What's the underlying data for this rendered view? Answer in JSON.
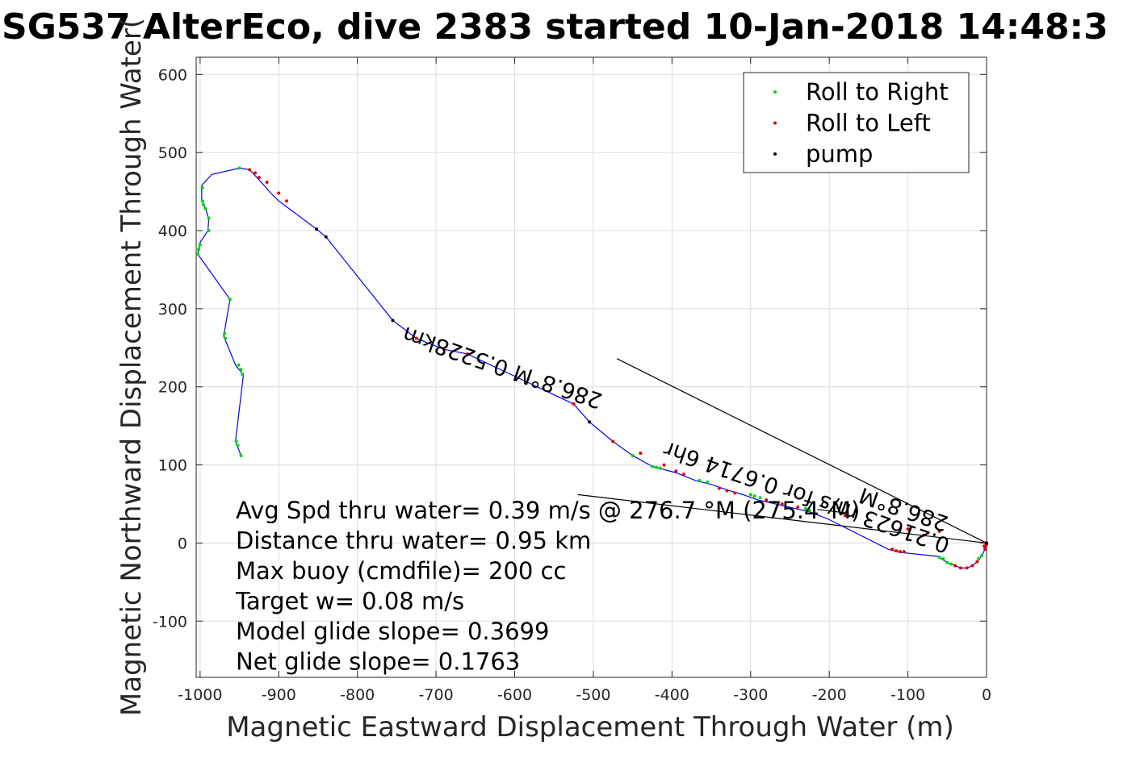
{
  "chart_data": {
    "type": "line",
    "title": "SG537 AlterEco, dive 2383 started 10-Jan-2018 14:48:3",
    "xlabel": "Magnetic Eastward Displacement Through Water (m)",
    "ylabel": "Magnetic Northward Displacement Through Water(",
    "xlim": [
      -1005,
      0
    ],
    "ylim": [
      -172,
      622
    ],
    "xticks": [
      -1000,
      -900,
      -800,
      -700,
      -600,
      -500,
      -400,
      -300,
      -200,
      -100,
      0
    ],
    "yticks": [
      -100,
      0,
      100,
      200,
      300,
      400,
      500,
      600
    ],
    "grid": true,
    "legend": {
      "placement": "top-right",
      "entries": [
        {
          "label": "Roll to Right",
          "color": "#00d800"
        },
        {
          "label": "Roll to Left",
          "color": "#e00000"
        },
        {
          "label": "pump",
          "color": "#000000"
        }
      ]
    },
    "track_color": "#0000ff",
    "track": [
      [
        0,
        0
      ],
      [
        -2,
        -8
      ],
      [
        -6,
        -16
      ],
      [
        -12,
        -24
      ],
      [
        -18,
        -29
      ],
      [
        -25,
        -32
      ],
      [
        -33,
        -32
      ],
      [
        -40,
        -29
      ],
      [
        -50,
        -25
      ],
      [
        -58,
        -20
      ],
      [
        -63,
        -17
      ],
      [
        -110,
        -12
      ],
      [
        -125,
        -8
      ],
      [
        -200,
        30
      ],
      [
        -225,
        40
      ],
      [
        -260,
        48
      ],
      [
        -290,
        55
      ],
      [
        -310,
        62
      ],
      [
        -330,
        68
      ],
      [
        -350,
        75
      ],
      [
        -370,
        80
      ],
      [
        -395,
        90
      ],
      [
        -425,
        98
      ],
      [
        -450,
        112
      ],
      [
        -475,
        130
      ],
      [
        -505,
        155
      ],
      [
        -525,
        178
      ],
      [
        -660,
        242
      ],
      [
        -690,
        248
      ],
      [
        -725,
        262
      ],
      [
        -755,
        285
      ],
      [
        -840,
        392
      ],
      [
        -852,
        402
      ],
      [
        -900,
        438
      ],
      [
        -910,
        448
      ],
      [
        -925,
        465
      ],
      [
        -937,
        478
      ],
      [
        -950,
        480
      ],
      [
        -985,
        472
      ],
      [
        -998,
        458
      ],
      [
        -998,
        440
      ],
      [
        -993,
        428
      ],
      [
        -989,
        415
      ],
      [
        -990,
        400
      ],
      [
        -1000,
        385
      ],
      [
        -1003,
        370
      ],
      [
        -962,
        312
      ],
      [
        -970,
        265
      ],
      [
        -955,
        228
      ],
      [
        -945,
        215
      ],
      [
        -955,
        130
      ],
      [
        -948,
        112
      ]
    ],
    "roll_right": [
      [
        -1003,
        370
      ],
      [
        -1002,
        376
      ],
      [
        -1000,
        382
      ],
      [
        -997,
        438
      ],
      [
        -996,
        433
      ],
      [
        -993,
        428
      ],
      [
        -989,
        416
      ],
      [
        -989,
        400
      ],
      [
        -997,
        455
      ],
      [
        -962,
        312
      ],
      [
        -969,
        268
      ],
      [
        -968,
        262
      ],
      [
        -951,
        228
      ],
      [
        -948,
        222
      ],
      [
        -946,
        216
      ],
      [
        -954,
        130
      ],
      [
        -952,
        125
      ],
      [
        -948,
        112
      ],
      [
        -950,
        480
      ],
      [
        -450,
        112
      ],
      [
        -425,
        98
      ],
      [
        -420,
        97
      ],
      [
        -415,
        96
      ],
      [
        -365,
        80
      ],
      [
        -355,
        78
      ],
      [
        -300,
        62
      ],
      [
        -295,
        60
      ],
      [
        -288,
        58
      ],
      [
        -230,
        44
      ],
      [
        -225,
        42
      ],
      [
        -55,
        -20
      ],
      [
        -60,
        -18
      ],
      [
        -50,
        -25
      ],
      [
        -45,
        -27
      ],
      [
        -10,
        -20
      ],
      [
        -6,
        -16
      ]
    ],
    "roll_left": [
      [
        -937,
        478
      ],
      [
        -930,
        474
      ],
      [
        -925,
        468
      ],
      [
        -915,
        462
      ],
      [
        -900,
        448
      ],
      [
        -890,
        438
      ],
      [
        -725,
        262
      ],
      [
        -690,
        248
      ],
      [
        -660,
        242
      ],
      [
        -525,
        178
      ],
      [
        -505,
        155
      ],
      [
        -475,
        130
      ],
      [
        -440,
        115
      ],
      [
        -410,
        100
      ],
      [
        -395,
        92
      ],
      [
        -385,
        88
      ],
      [
        -340,
        70
      ],
      [
        -330,
        67
      ],
      [
        -320,
        64
      ],
      [
        -280,
        55
      ],
      [
        -270,
        52
      ],
      [
        -260,
        50
      ],
      [
        -240,
        46
      ],
      [
        -120,
        -8
      ],
      [
        -115,
        -10
      ],
      [
        -110,
        -11
      ],
      [
        -105,
        -11
      ],
      [
        -40,
        -29
      ],
      [
        -33,
        -32
      ],
      [
        -25,
        -32
      ],
      [
        -18,
        -29
      ],
      [
        -12,
        -24
      ],
      [
        -2,
        -8
      ],
      [
        0,
        -2
      ],
      [
        -1,
        0
      ],
      [
        -3,
        -4
      ],
      [
        -60,
        15
      ],
      [
        -80,
        10
      ],
      [
        -100,
        18
      ],
      [
        -150,
        30
      ],
      [
        -180,
        35
      ]
    ],
    "pump": [
      [
        -852,
        402
      ],
      [
        -840,
        392
      ],
      [
        -755,
        285
      ],
      [
        -505,
        155
      ],
      [
        0,
        0
      ]
    ],
    "black_lines": [
      [
        [
          0,
          0
        ],
        [
          -470,
          236
        ]
      ],
      [
        [
          0,
          0
        ],
        [
          -520,
          62
        ]
      ],
      [
        [
          -175,
          38
        ],
        [
          -215,
          43
        ]
      ]
    ],
    "stats": [
      "Avg Spd thru water=  0.39 m/s @ 276.7 °M (275.4°M)",
      "Distance thru water=  0.95 km",
      "Max buoy (cmdfile)= 200 cc",
      "Target w= 0.08 m/s",
      "Model glide slope= 0.3699",
      "Net glide slope= 0.1763"
    ],
    "annotations": [
      {
        "text": "286.8°M 0.5228km",
        "x": -487,
        "y": 190,
        "angle": 199
      },
      {
        "text": "0.21623 m/s for 0.6714 6hr",
        "x": -45,
        "y": 5,
        "angle": 199
      },
      {
        "text": "286.8°M",
        "x": -47,
        "y": 33,
        "angle": 199
      }
    ]
  }
}
